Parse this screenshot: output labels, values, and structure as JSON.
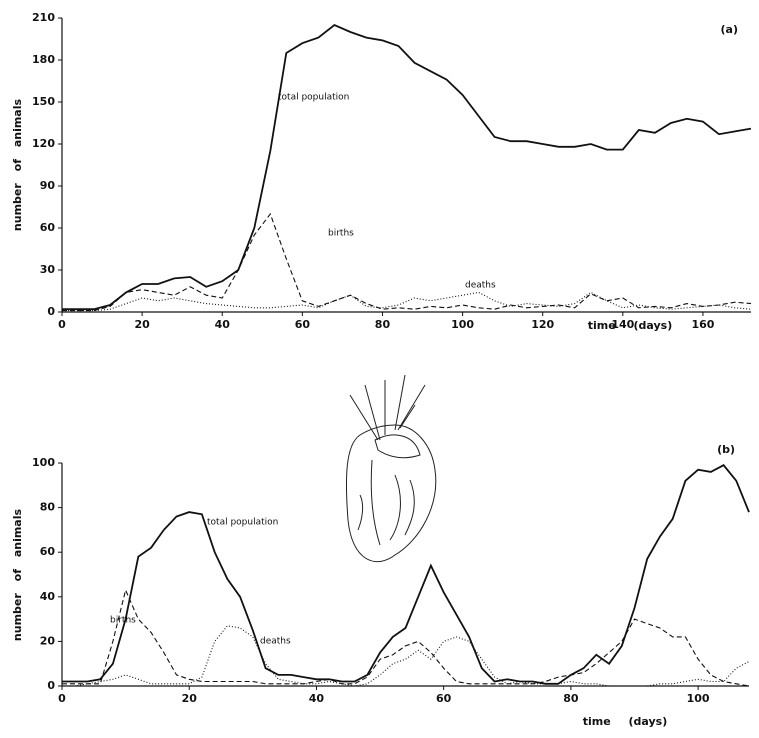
{
  "chart_data": [
    {
      "type": "line",
      "panel_label": "(a)",
      "x_label": "time (days)",
      "y_label": "number of animals",
      "x": [
        0,
        4,
        8,
        12,
        16,
        20,
        24,
        28,
        32,
        36,
        40,
        44,
        48,
        52,
        56,
        60,
        64,
        68,
        72,
        76,
        80,
        84,
        88,
        92,
        96,
        100,
        104,
        108,
        112,
        116,
        120,
        124,
        128,
        132,
        136,
        140,
        144,
        148,
        152,
        156,
        160,
        164,
        168,
        172
      ],
      "series": [
        {
          "name": "total population",
          "color": "#111111",
          "dash": "solid",
          "values": [
            2,
            2,
            2,
            5,
            14,
            20,
            20,
            24,
            25,
            18,
            22,
            30,
            60,
            115,
            185,
            192,
            196,
            205,
            200,
            196,
            194,
            190,
            178,
            172,
            166,
            155,
            140,
            125,
            122,
            122,
            120,
            118,
            118,
            120,
            116,
            116,
            130,
            128,
            135,
            138,
            136,
            127,
            129,
            131
          ]
        },
        {
          "name": "births",
          "color": "#111111",
          "dash": "dashed",
          "values": [
            1,
            1,
            1,
            4,
            14,
            16,
            14,
            12,
            18,
            12,
            10,
            30,
            55,
            70,
            38,
            8,
            4,
            8,
            12,
            6,
            2,
            3,
            2,
            4,
            3,
            5,
            3,
            2,
            5,
            3,
            4,
            5,
            3,
            13,
            8,
            10,
            3,
            4,
            3,
            6,
            4,
            5,
            7,
            6
          ]
        },
        {
          "name": "deaths",
          "color": "#111111",
          "dash": "dotted",
          "values": [
            1,
            1,
            1,
            2,
            6,
            10,
            8,
            10,
            8,
            6,
            5,
            4,
            3,
            3,
            4,
            5,
            3,
            8,
            12,
            4,
            3,
            5,
            10,
            8,
            10,
            12,
            14,
            8,
            4,
            6,
            5,
            4,
            6,
            14,
            8,
            3,
            5,
            3,
            2,
            3,
            4,
            5,
            3,
            2
          ]
        }
      ],
      "xlim": [
        0,
        172
      ],
      "xticks": [
        0,
        20,
        40,
        60,
        80,
        100,
        120,
        140,
        160
      ],
      "ylim": [
        0,
        210
      ],
      "yticks": [
        0,
        30,
        60,
        90,
        120,
        150,
        180,
        210
      ]
    },
    {
      "type": "line",
      "panel_label": "(b)",
      "x_label": "time (days)",
      "y_label": "number of animals",
      "x": [
        0,
        2,
        4,
        6,
        8,
        10,
        12,
        14,
        16,
        18,
        20,
        22,
        24,
        26,
        28,
        30,
        32,
        34,
        36,
        38,
        40,
        42,
        44,
        46,
        48,
        50,
        52,
        54,
        56,
        58,
        60,
        62,
        64,
        66,
        68,
        70,
        72,
        74,
        76,
        78,
        80,
        82,
        84,
        86,
        88,
        90,
        92,
        94,
        96,
        98,
        100,
        102,
        104,
        106,
        108
      ],
      "series": [
        {
          "name": "total population",
          "color": "#111111",
          "dash": "solid",
          "values": [
            2,
            2,
            2,
            3,
            10,
            30,
            58,
            62,
            70,
            76,
            78,
            77,
            60,
            48,
            40,
            25,
            8,
            5,
            5,
            4,
            3,
            3,
            2,
            2,
            5,
            15,
            22,
            26,
            40,
            54,
            42,
            32,
            22,
            8,
            2,
            3,
            2,
            2,
            1,
            1,
            5,
            8,
            14,
            10,
            18,
            35,
            57,
            67,
            75,
            92,
            97,
            96,
            99,
            92,
            78
          ]
        },
        {
          "name": "births",
          "color": "#111111",
          "dash": "dashed",
          "values": [
            1,
            1,
            1,
            1,
            20,
            43,
            30,
            24,
            15,
            5,
            3,
            2,
            2,
            2,
            2,
            2,
            1,
            1,
            1,
            1,
            2,
            3,
            1,
            1,
            4,
            12,
            14,
            18,
            20,
            15,
            8,
            2,
            1,
            1,
            1,
            1,
            1,
            1,
            2,
            4,
            5,
            6,
            10,
            15,
            20,
            30,
            28,
            26,
            22,
            22,
            12,
            5,
            2,
            1,
            0
          ]
        },
        {
          "name": "deaths",
          "color": "#111111",
          "dash": "dotted",
          "values": [
            0,
            0,
            1,
            2,
            3,
            5,
            3,
            1,
            1,
            1,
            1,
            4,
            20,
            27,
            26,
            22,
            10,
            3,
            2,
            1,
            1,
            2,
            1,
            0,
            1,
            5,
            10,
            12,
            16,
            12,
            20,
            22,
            20,
            12,
            4,
            1,
            2,
            1,
            1,
            1,
            2,
            1,
            1,
            0,
            0,
            0,
            0,
            1,
            1,
            2,
            3,
            2,
            2,
            8,
            11
          ]
        }
      ],
      "xlim": [
        0,
        108
      ],
      "xticks": [
        0,
        20,
        40,
        60,
        80,
        100
      ],
      "ylim": [
        0,
        100
      ],
      "yticks": [
        0,
        20,
        40,
        60,
        80,
        100
      ]
    }
  ]
}
